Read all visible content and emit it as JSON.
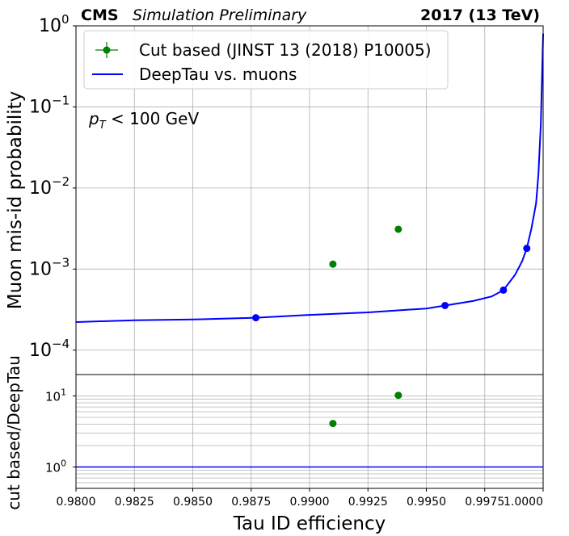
{
  "header": {
    "experiment": "CMS",
    "status": "Simulation Preliminary",
    "run_info": "2017 (13 TeV)"
  },
  "chart_data": [
    {
      "type": "line",
      "panel": "main",
      "ylabel": "Muon mis-id probability",
      "xlabel": "",
      "xlim": [
        0.98,
        1.0
      ],
      "ylim": [
        5e-05,
        1.0
      ],
      "yscale": "log",
      "grid": true,
      "legend_position": "top-left",
      "annotation": "pT < 100 GeV",
      "x_ticks": [
        0.98,
        0.9825,
        0.985,
        0.9875,
        0.99,
        0.9925,
        0.995,
        0.9975,
        1.0
      ],
      "y_tick_labels": [
        {
          "value": 1.0,
          "base": "10",
          "exp": "0"
        },
        {
          "value": 0.1,
          "base": "10",
          "exp": "−1"
        },
        {
          "value": 0.01,
          "base": "10",
          "exp": "−2"
        },
        {
          "value": 0.001,
          "base": "10",
          "exp": "−3"
        },
        {
          "value": 0.0001,
          "base": "10",
          "exp": "−4"
        }
      ],
      "series": [
        {
          "name": "Cut based (JINST 13 (2018) P10005)",
          "kind": "points",
          "color": "#008000",
          "x": [
            0.991,
            0.9938
          ],
          "y": [
            0.00115,
            0.0031
          ]
        },
        {
          "name": "DeepTau vs. muons",
          "kind": "line",
          "color": "#0000ff",
          "x": [
            0.98,
            0.9825,
            0.985,
            0.9877,
            0.99,
            0.9925,
            0.995,
            0.9958,
            0.997,
            0.9978,
            0.9983,
            0.9988,
            0.9991,
            0.9993,
            0.9995,
            0.9997,
            0.9998,
            0.9999,
            1.0
          ],
          "y": [
            0.000222,
            0.000234,
            0.000239,
            0.000251,
            0.000272,
            0.000292,
            0.000326,
            0.000355,
            0.000404,
            0.00046,
            0.00055,
            0.00085,
            0.00125,
            0.0018,
            0.0032,
            0.0065,
            0.015,
            0.06,
            0.8
          ],
          "markers_x": [
            0.9877,
            0.9958,
            0.9983,
            0.9993
          ],
          "markers_y": [
            0.000251,
            0.000355,
            0.00055,
            0.0018
          ]
        }
      ]
    },
    {
      "type": "scatter",
      "panel": "ratio",
      "ylabel": "cut based/DeepTau",
      "xlabel": "Tau ID efficiency",
      "xlim": [
        0.98,
        1.0
      ],
      "ylim": [
        0.5,
        20
      ],
      "yscale": "log",
      "grid": true,
      "x_tick_labels": [
        "0.9800",
        "0.9825",
        "0.9850",
        "0.9875",
        "0.9900",
        "0.9925",
        "0.9950",
        "0.9975",
        "1.0000"
      ],
      "y_tick_labels": [
        {
          "value": 10,
          "base": "10",
          "exp": "1"
        },
        {
          "value": 1,
          "base": "10",
          "exp": "0"
        }
      ],
      "reference_line": {
        "y": 1,
        "color": "#0000ff"
      },
      "series": [
        {
          "name": "",
          "color": "#008000",
          "x": [
            0.991,
            0.9938
          ],
          "y": [
            4.1,
            10.2
          ]
        }
      ]
    }
  ]
}
